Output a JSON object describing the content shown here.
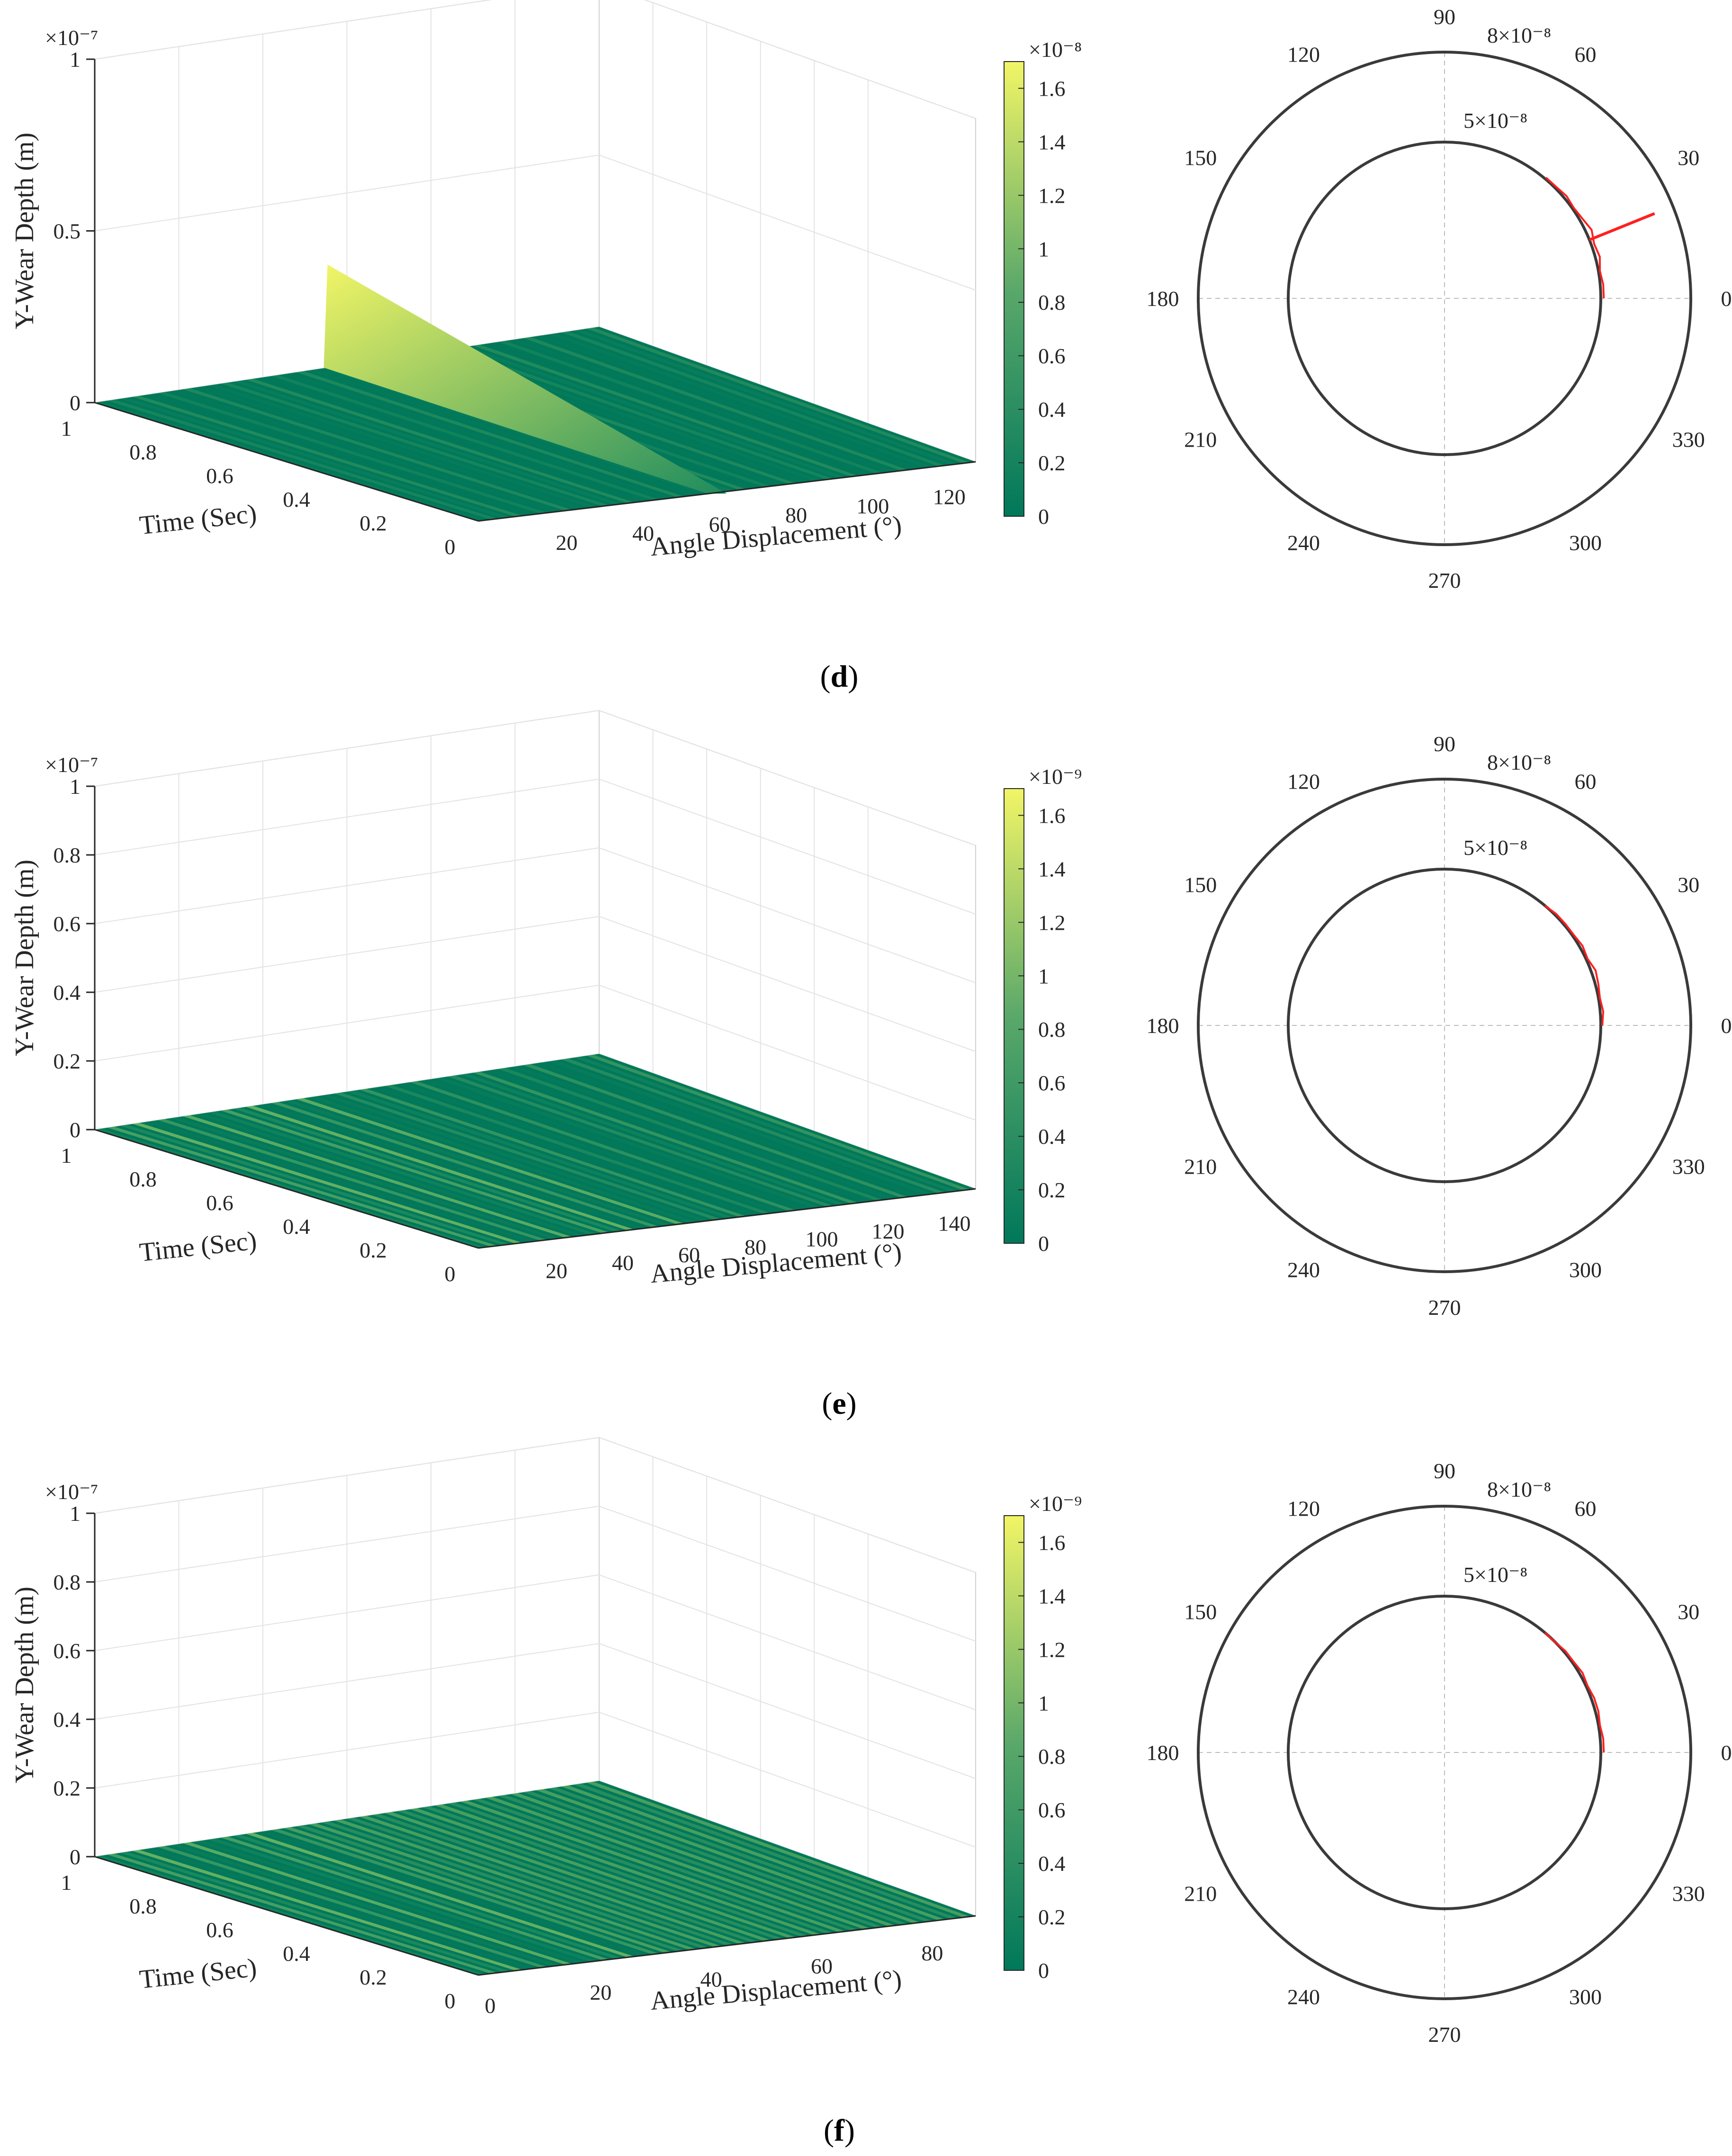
{
  "figure": {
    "panels": [
      {
        "caption_open": "(",
        "caption_letter": "d",
        "caption_close": ")",
        "surface": {
          "zlabel": "Y-Wear Depth (m)",
          "xlabel": "Angle Displacement (°)",
          "ylabel": "Time (Sec)",
          "z_exponent": "×10⁻⁷",
          "z_ticks": [
            "0",
            "0.5",
            "1"
          ],
          "x_ticks": [
            "20",
            "40",
            "60",
            "80",
            "100",
            "120"
          ],
          "y_ticks": [
            "0",
            "0.2",
            "0.4",
            "0.6",
            "0.8",
            "1"
          ],
          "colorbar_exponent": "×10⁻⁸",
          "colorbar_ticks": [
            "0",
            "0.2",
            "0.4",
            "0.6",
            "0.8",
            "1",
            "1.2",
            "1.4",
            "1.6"
          ]
        },
        "polar": {
          "angle_ticks": [
            "0",
            "30",
            "60",
            "90",
            "120",
            "150",
            "180",
            "210",
            "240",
            "270",
            "300",
            "330"
          ],
          "outer_label": "8×10⁻⁸",
          "inner_label": "5×10⁻⁸"
        }
      },
      {
        "caption_open": "(",
        "caption_letter": "e",
        "caption_close": ")",
        "surface": {
          "zlabel": "Y-Wear Depth (m)",
          "xlabel": "Angle Displacement (°)",
          "ylabel": "Time (Sec)",
          "z_exponent": "×10⁻⁷",
          "z_ticks": [
            "0",
            "0.2",
            "0.4",
            "0.6",
            "0.8",
            "1"
          ],
          "x_ticks": [
            "20",
            "40",
            "60",
            "80",
            "100",
            "120",
            "140"
          ],
          "y_ticks": [
            "0",
            "0.2",
            "0.4",
            "0.6",
            "0.8",
            "1"
          ],
          "colorbar_exponent": "×10⁻⁹",
          "colorbar_ticks": [
            "0",
            "0.2",
            "0.4",
            "0.6",
            "0.8",
            "1",
            "1.2",
            "1.4",
            "1.6"
          ]
        },
        "polar": {
          "angle_ticks": [
            "0",
            "30",
            "60",
            "90",
            "120",
            "150",
            "180",
            "210",
            "240",
            "270",
            "300",
            "330"
          ],
          "outer_label": "8×10⁻⁸",
          "inner_label": "5×10⁻⁸"
        }
      },
      {
        "caption_open": "(",
        "caption_letter": "f",
        "caption_close": ")",
        "surface": {
          "zlabel": "Y-Wear Depth (m)",
          "xlabel": "Angle Displacement (°)",
          "ylabel": "Time (Sec)",
          "z_exponent": "×10⁻⁷",
          "z_ticks": [
            "0",
            "0.2",
            "0.4",
            "0.6",
            "0.8",
            "1"
          ],
          "x_ticks": [
            "0",
            "20",
            "40",
            "60",
            "80"
          ],
          "y_ticks": [
            "0",
            "0.2",
            "0.4",
            "0.6",
            "0.8",
            "1"
          ],
          "colorbar_exponent": "×10⁻⁹",
          "colorbar_ticks": [
            "0",
            "0.2",
            "0.4",
            "0.6",
            "0.8",
            "1",
            "1.2",
            "1.4",
            "1.6"
          ]
        },
        "polar": {
          "angle_ticks": [
            "0",
            "30",
            "60",
            "90",
            "120",
            "150",
            "180",
            "210",
            "240",
            "270",
            "300",
            "330"
          ],
          "outer_label": "8×10⁻⁸",
          "inner_label": "5×10⁻⁸"
        }
      }
    ]
  },
  "colors": {
    "colormap_low": "#00785a",
    "colormap_mid": "#5aa86a",
    "colormap_high": "#f2f566",
    "polar_trace": "#ff2020",
    "polar_circle": "#3a3a3a"
  },
  "chart_data": [
    {
      "type": "surface",
      "panel": "d",
      "x_range": [
        0,
        130
      ],
      "y_range": [
        0,
        1
      ],
      "z_range": [
        0,
        1e-07
      ],
      "color_range": [
        0,
        1.7e-08
      ],
      "ridges": [
        {
          "angle": 60,
          "time": 1,
          "depth": 3e-08
        }
      ]
    },
    {
      "type": "polar",
      "panel": "d",
      "r_rings": [
        5e-08,
        8e-08
      ],
      "trace": {
        "theta_deg": [
          0,
          5,
          10,
          15,
          20,
          25,
          30,
          35,
          40,
          45,
          50
        ],
        "r": [
          5.1e-08,
          5.1e-08,
          5.05e-08,
          5.15e-08,
          5.1e-08,
          5.2e-08,
          5.1e-08,
          5.05e-08,
          5.1e-08,
          5.05e-08,
          5.05e-08
        ]
      },
      "spike": {
        "theta_deg": 22,
        "r_from": 5e-08,
        "r_to": 8e-08
      },
      "grid": true
    },
    {
      "type": "surface",
      "panel": "e",
      "x_range": [
        0,
        150
      ],
      "y_range": [
        0,
        1
      ],
      "z_range": [
        0,
        1e-07
      ],
      "color_range": [
        0,
        1.7e-09
      ]
    },
    {
      "type": "polar",
      "panel": "e",
      "r_rings": [
        5e-08,
        8e-08
      ],
      "trace": {
        "theta_deg": [
          0,
          5,
          10,
          15,
          20,
          25,
          30,
          35,
          40,
          45,
          50
        ],
        "r": [
          5.05e-08,
          5.1e-08,
          5.05e-08,
          5.1e-08,
          5.15e-08,
          5.05e-08,
          5.1e-08,
          5.05e-08,
          5.05e-08,
          5.05e-08,
          5e-08
        ]
      },
      "grid": true
    },
    {
      "type": "surface",
      "panel": "f",
      "x_range": [
        0,
        90
      ],
      "y_range": [
        0,
        1
      ],
      "z_range": [
        0,
        1e-07
      ],
      "color_range": [
        0,
        1.7e-09
      ]
    },
    {
      "type": "polar",
      "panel": "f",
      "r_rings": [
        5e-08,
        8e-08
      ],
      "trace": {
        "theta_deg": [
          0,
          5,
          10,
          15,
          20,
          25,
          30,
          35,
          40,
          45,
          50
        ],
        "r": [
          5.1e-08,
          5.1e-08,
          5.05e-08,
          5.1e-08,
          5.1e-08,
          5.05e-08,
          5.1e-08,
          5.05e-08,
          5.05e-08,
          5e-08,
          5e-08
        ]
      },
      "grid": true
    }
  ]
}
